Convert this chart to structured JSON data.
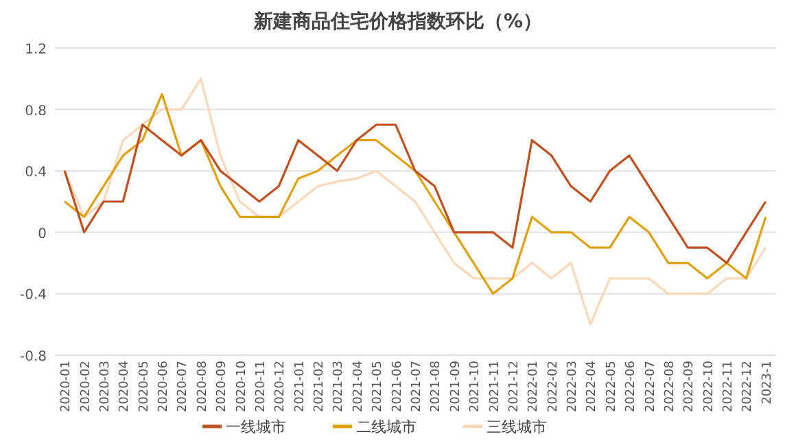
{
  "chart_data": {
    "type": "line",
    "title": "新建商品住宅价格指数环比（%）",
    "categories": [
      "2020-01",
      "2020-02",
      "2020-03",
      "2020-04",
      "2020-05",
      "2020-06",
      "2020-07",
      "2020-08",
      "2020-09",
      "2020-10",
      "2020-11",
      "2020-12",
      "2021-01",
      "2021-02",
      "2021-03",
      "2021-04",
      "2021-05",
      "2021-06",
      "2021-07",
      "2021-08",
      "2021-09",
      "2021-10",
      "2021-11",
      "2021-12",
      "2022-01",
      "2022-02",
      "2022-03",
      "2022-04",
      "2022-05",
      "2022-06",
      "2022-07",
      "2022-08",
      "2022-09",
      "2022-10",
      "2022-11",
      "2022-12",
      "2023-1"
    ],
    "series": [
      {
        "name": "一线城市",
        "color": "#c0501f",
        "values": [
          0.4,
          0.0,
          0.2,
          0.2,
          0.7,
          0.6,
          0.5,
          0.6,
          0.4,
          0.3,
          0.2,
          0.3,
          0.6,
          0.5,
          0.4,
          0.6,
          0.7,
          0.7,
          0.4,
          0.3,
          0.0,
          0.0,
          0.0,
          -0.1,
          0.6,
          0.5,
          0.3,
          0.2,
          0.4,
          0.5,
          0.3,
          0.1,
          -0.1,
          -0.1,
          -0.2,
          0.0,
          0.2
        ]
      },
      {
        "name": "二线城市",
        "color": "#e0a010",
        "values": [
          0.2,
          0.1,
          0.3,
          0.5,
          0.6,
          0.9,
          0.5,
          0.6,
          0.3,
          0.1,
          0.1,
          0.1,
          0.35,
          0.4,
          0.5,
          0.6,
          0.6,
          0.5,
          0.4,
          0.2,
          0.0,
          -0.2,
          -0.4,
          -0.3,
          0.1,
          0.0,
          0.0,
          -0.1,
          -0.1,
          0.1,
          0.0,
          -0.2,
          -0.2,
          -0.3,
          -0.2,
          -0.3,
          0.1
        ]
      },
      {
        "name": "三线城市",
        "color": "#f8d8b8",
        "values": [
          0.4,
          0.1,
          0.2,
          0.6,
          0.7,
          0.8,
          0.8,
          1.0,
          0.5,
          0.2,
          0.1,
          0.1,
          0.2,
          0.3,
          0.33,
          0.35,
          0.4,
          0.3,
          0.2,
          0.0,
          -0.2,
          -0.3,
          -0.3,
          -0.3,
          -0.2,
          -0.3,
          -0.2,
          -0.6,
          -0.3,
          -0.3,
          -0.3,
          -0.4,
          -0.4,
          -0.4,
          -0.3,
          -0.3,
          -0.1
        ]
      }
    ],
    "ylim": [
      -0.8,
      1.2
    ],
    "yticks": [
      -0.8,
      -0.4,
      0,
      0.4,
      0.8,
      1.2
    ],
    "grid": "y",
    "legend": "bottom"
  }
}
